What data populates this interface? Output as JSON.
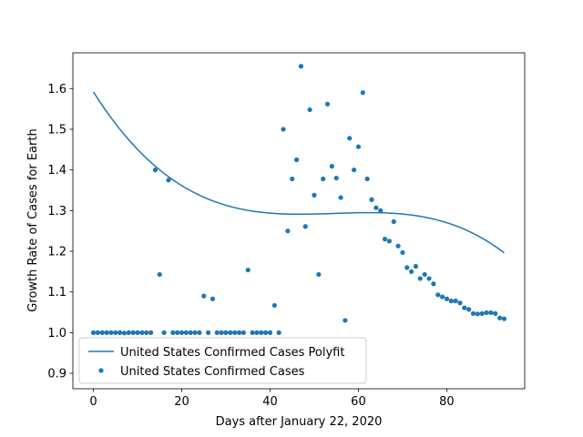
{
  "chart_data": {
    "type": "scatter",
    "xlabel": "Days after January 22, 2020",
    "ylabel": "Growth Rate of Cases for Earth",
    "xlim": [
      -4.65,
      97.65
    ],
    "ylim": [
      0.862,
      1.688
    ],
    "x_ticks": [
      0,
      20,
      40,
      60,
      80
    ],
    "y_ticks": [
      0.9,
      1.0,
      1.1,
      1.2,
      1.3,
      1.4,
      1.5,
      1.6
    ],
    "grid": false,
    "legend_position": "lower-left",
    "color": "#1f77b4",
    "series": [
      {
        "name": "United States Confirmed Cases Polyfit",
        "kind": "line",
        "poly": {
          "x_peak": 62.5,
          "y_peak": 1.295,
          "a": -4.65e-05,
          "b": -1.96e-06
        },
        "x_range": [
          0,
          93
        ]
      },
      {
        "name": "United States Confirmed Cases",
        "kind": "scatter",
        "points": [
          [
            0,
            1.0
          ],
          [
            1,
            1.0
          ],
          [
            2,
            1.0
          ],
          [
            3,
            1.0
          ],
          [
            4,
            1.0
          ],
          [
            5,
            1.0
          ],
          [
            6,
            1.0
          ],
          [
            7,
            0.999
          ],
          [
            8,
            1.0
          ],
          [
            9,
            1.0
          ],
          [
            10,
            1.0
          ],
          [
            11,
            1.0
          ],
          [
            12,
            1.0
          ],
          [
            13,
            1.0
          ],
          [
            14,
            1.4
          ],
          [
            15,
            1.143
          ],
          [
            16,
            1.0
          ],
          [
            17,
            1.375
          ],
          [
            18,
            1.0
          ],
          [
            19,
            1.0
          ],
          [
            20,
            1.0
          ],
          [
            21,
            1.0
          ],
          [
            22,
            1.0
          ],
          [
            23,
            1.0
          ],
          [
            24,
            1.0
          ],
          [
            25,
            1.09
          ],
          [
            26,
            1.0
          ],
          [
            27,
            1.083
          ],
          [
            28,
            1.0
          ],
          [
            29,
            1.0
          ],
          [
            30,
            1.0
          ],
          [
            31,
            1.0
          ],
          [
            32,
            1.0
          ],
          [
            33,
            1.0
          ],
          [
            34,
            1.0
          ],
          [
            35,
            1.154
          ],
          [
            36,
            1.0
          ],
          [
            37,
            1.0
          ],
          [
            38,
            1.0
          ],
          [
            39,
            1.0
          ],
          [
            40,
            1.0
          ],
          [
            41,
            1.067
          ],
          [
            42,
            1.0
          ],
          [
            43,
            1.5
          ],
          [
            44,
            1.25
          ],
          [
            45,
            1.378
          ],
          [
            46,
            1.425
          ],
          [
            47,
            1.655
          ],
          [
            48,
            1.261
          ],
          [
            49,
            1.548
          ],
          [
            50,
            1.338
          ],
          [
            51,
            1.143
          ],
          [
            52,
            1.378
          ],
          [
            53,
            1.562
          ],
          [
            54,
            1.409
          ],
          [
            55,
            1.38
          ],
          [
            56,
            1.332
          ],
          [
            57,
            1.03
          ],
          [
            58,
            1.478
          ],
          [
            59,
            1.4
          ],
          [
            60,
            1.457
          ],
          [
            61,
            1.59
          ],
          [
            62,
            1.378
          ],
          [
            63,
            1.327
          ],
          [
            64,
            1.307
          ],
          [
            65,
            1.3
          ],
          [
            66,
            1.23
          ],
          [
            67,
            1.225
          ],
          [
            68,
            1.273
          ],
          [
            69,
            1.213
          ],
          [
            70,
            1.197
          ],
          [
            71,
            1.16
          ],
          [
            72,
            1.15
          ],
          [
            73,
            1.163
          ],
          [
            74,
            1.133
          ],
          [
            75,
            1.143
          ],
          [
            76,
            1.133
          ],
          [
            77,
            1.12
          ],
          [
            78,
            1.093
          ],
          [
            79,
            1.088
          ],
          [
            80,
            1.083
          ],
          [
            81,
            1.078
          ],
          [
            82,
            1.078
          ],
          [
            83,
            1.073
          ],
          [
            84,
            1.061
          ],
          [
            85,
            1.057
          ],
          [
            86,
            1.047
          ],
          [
            87,
            1.046
          ],
          [
            88,
            1.047
          ],
          [
            89,
            1.049
          ],
          [
            90,
            1.049
          ],
          [
            91,
            1.047
          ],
          [
            92,
            1.036
          ],
          [
            93,
            1.034
          ]
        ]
      }
    ]
  }
}
